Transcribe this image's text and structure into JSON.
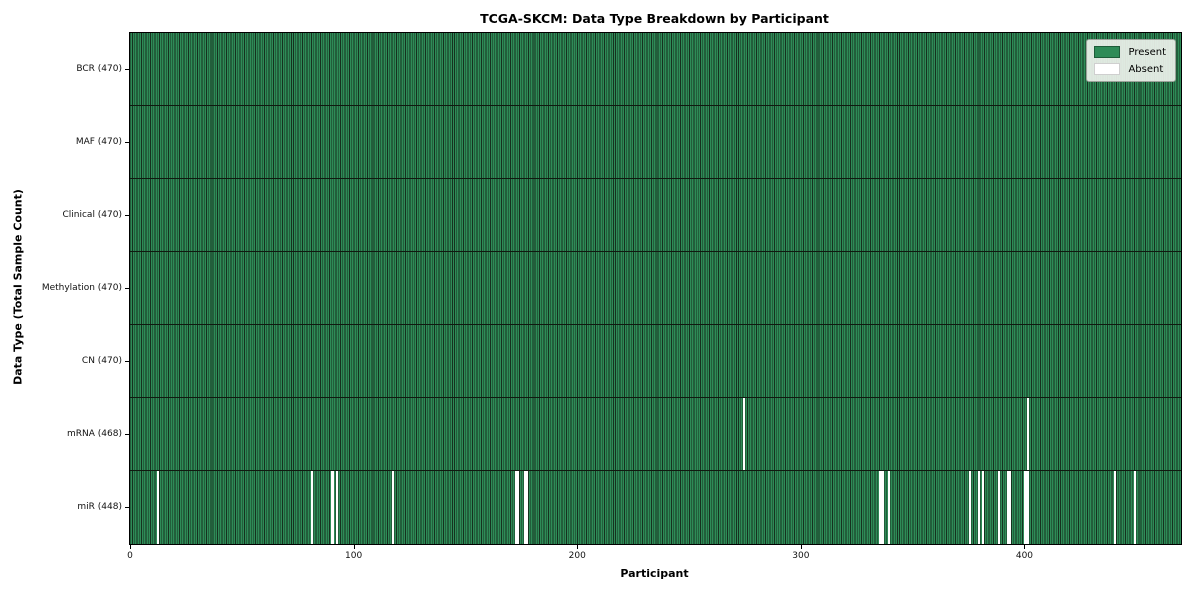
{
  "chart_data": {
    "type": "heatmap",
    "title": "TCGA-SKCM: Data Type Breakdown by Participant",
    "xlabel": "Participant",
    "ylabel": "Data Type (Total Sample Count)",
    "n_participants": 470,
    "x_ticks": [
      0,
      100,
      200,
      300,
      400
    ],
    "legend": {
      "entries": [
        "Present",
        "Absent"
      ],
      "position": "upper right"
    },
    "colors": {
      "present": "#2e8b57",
      "cell_edge": "#16311f",
      "absent": "#ffffff",
      "row_divider": "#101a10",
      "legend_bg": "#eef2ec"
    },
    "grid": false,
    "rows": [
      {
        "name": "BCR",
        "total": 470,
        "label": "BCR (470)",
        "absent_participants": []
      },
      {
        "name": "MAF",
        "total": 470,
        "label": "MAF (470)",
        "absent_participants": []
      },
      {
        "name": "Clinical",
        "total": 470,
        "label": "Clinical (470)",
        "absent_participants": []
      },
      {
        "name": "Methylation",
        "total": 470,
        "label": "Methylation (470)",
        "absent_participants": []
      },
      {
        "name": "CN",
        "total": 470,
        "label": "CN (470)",
        "absent_participants": []
      },
      {
        "name": "mRNA",
        "total": 468,
        "label": "mRNA (468)",
        "absent_participants": [
          274,
          401
        ]
      },
      {
        "name": "miR",
        "total": 448,
        "label": "miR (448)",
        "absent_participants": [
          12,
          81,
          90,
          92,
          117,
          172,
          173,
          176,
          177,
          335,
          336,
          339,
          375,
          379,
          381,
          388,
          392,
          393,
          400,
          401,
          440,
          449
        ]
      }
    ]
  }
}
